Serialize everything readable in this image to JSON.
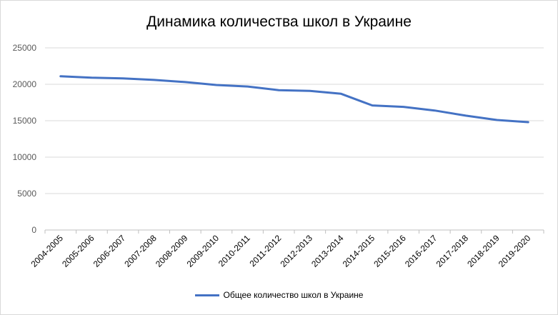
{
  "chart_data": {
    "type": "line",
    "title": "Динамика количества школ в Украине",
    "categories": [
      "2004-2005",
      "2005-2006",
      "2006-2007",
      "2007-2008",
      "2008-2009",
      "2009-2010",
      "2010-2011",
      "2011-2012",
      "2012-2013",
      "2013-2014",
      "2014-2015",
      "2015-2016",
      "2016-2017",
      "2017-2018",
      "2018-2019",
      "2019-2020"
    ],
    "series": [
      {
        "name": "Общее количество школ в Украине",
        "color": "#4472c4",
        "values": [
          21100,
          20900,
          20800,
          20600,
          20300,
          19900,
          19700,
          19200,
          19100,
          18700,
          17100,
          16900,
          16400,
          15700,
          15100,
          14800
        ]
      }
    ],
    "ylim": [
      0,
      25000
    ],
    "yticks": [
      "0",
      "5000",
      "10000",
      "15000",
      "20000",
      "25000"
    ],
    "grid": true,
    "legend_position": "bottom"
  }
}
